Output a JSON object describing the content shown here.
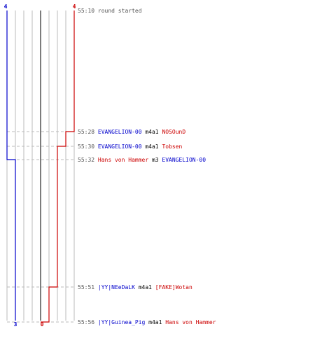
{
  "colors": {
    "team_a": "#0000cc",
    "team_b": "#cc0000",
    "neutral": "#000000",
    "time": "#555555",
    "grid": "#bbbbbb",
    "center": "#444444",
    "dash": "#bbbbbb"
  },
  "score": {
    "team_a_start": "4",
    "team_b_start": "4",
    "team_a_end": "3",
    "team_b_end": "0"
  },
  "events": [
    {
      "time": "55:10",
      "segments": [
        {
          "text": "round started",
          "team": "time"
        }
      ]
    },
    {
      "time": "55:28",
      "segments": [
        {
          "text": "EVANGELION-00",
          "team": "a"
        },
        {
          "text": "m4a1",
          "team": "n"
        },
        {
          "text": "NOSOunD",
          "team": "b"
        }
      ]
    },
    {
      "time": "55:30",
      "segments": [
        {
          "text": "EVANGELION-00",
          "team": "a"
        },
        {
          "text": "m4a1",
          "team": "n"
        },
        {
          "text": "Tobsen",
          "team": "b"
        }
      ]
    },
    {
      "time": "55:32",
      "segments": [
        {
          "text": "Hans von Hammer",
          "team": "b"
        },
        {
          "text": "m3",
          "team": "n"
        },
        {
          "text": "EVANGELION-00",
          "team": "a"
        }
      ]
    },
    {
      "time": "55:51",
      "segments": [
        {
          "text": "|YY|NEeDaLK",
          "team": "a"
        },
        {
          "text": "m4a1",
          "team": "n"
        },
        {
          "text": "[FAKE]Wotan",
          "team": "b"
        }
      ]
    },
    {
      "time": "55:56",
      "segments": [
        {
          "text": "|YY|Guinea_Pig",
          "team": "a"
        },
        {
          "text": "m4a1",
          "team": "n"
        },
        {
          "text": "Hans von Hammer",
          "team": "b"
        }
      ]
    }
  ]
}
